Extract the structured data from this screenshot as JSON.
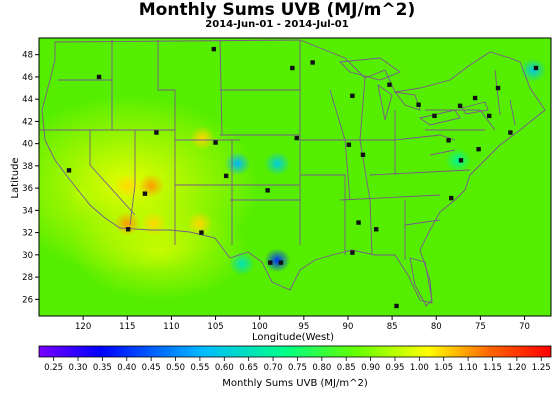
{
  "title": "Monthly Sums UVB (MJ/m^2)",
  "subtitle": "2014-Jun-01 - 2014-Jul-01",
  "map": {
    "ylabel": "Latitude",
    "xlabel": "Longitude(West)",
    "lat_ticks": [
      "48",
      "46",
      "44",
      "42",
      "40",
      "38",
      "36",
      "34",
      "32",
      "30",
      "28",
      "26"
    ],
    "lon_ticks": [
      "120",
      "115",
      "110",
      "105",
      "100",
      "95",
      "90",
      "85",
      "80",
      "75",
      "70"
    ],
    "background_color": "#55ee00"
  },
  "colorbar": {
    "label": "Monthly Sums UVB (MJ/m^2)",
    "ticks": [
      "0.25",
      "0.30",
      "0.35",
      "0.40",
      "0.45",
      "0.50",
      "0.55",
      "0.60",
      "0.65",
      "0.70",
      "0.75",
      "0.80",
      "0.85",
      "0.90",
      "0.95",
      "1.00",
      "1.05",
      "1.10",
      "1.15",
      "1.20",
      "1.25"
    ],
    "range": [
      0.22,
      1.27
    ],
    "colors": [
      "#7a00ff",
      "#0000ff",
      "#00bbff",
      "#00ff88",
      "#66ff00",
      "#ffff00",
      "#ff6600",
      "#ff0000"
    ]
  },
  "hotspots": [
    {
      "lon": 115,
      "lat": 32.8,
      "value": 1.1
    },
    {
      "lon": 112.3,
      "lat": 36.2,
      "value": 1.1
    },
    {
      "lon": 115,
      "lat": 36.2,
      "value": 1.05
    },
    {
      "lon": 112,
      "lat": 32.8,
      "value": 1.05
    },
    {
      "lon": 106.8,
      "lat": 32.8,
      "value": 1.05
    },
    {
      "lon": 106.5,
      "lat": 40.5,
      "value": 1.05
    },
    {
      "lon": 120,
      "lat": 35.5,
      "value": 0.95
    },
    {
      "lon": 102.5,
      "lat": 38.2,
      "value": 0.55
    },
    {
      "lon": 98,
      "lat": 38.2,
      "value": 0.6
    },
    {
      "lon": 98,
      "lat": 29.5,
      "value": 0.4
    },
    {
      "lon": 102,
      "lat": 29.2,
      "value": 0.65
    },
    {
      "lon": 77.5,
      "lat": 38.5,
      "value": 0.7
    },
    {
      "lon": 69,
      "lat": 46.6,
      "value": 0.6
    }
  ],
  "stations": [
    {
      "lon": 118.2,
      "lat": 46.0
    },
    {
      "lon": 105.2,
      "lat": 48.5
    },
    {
      "lon": 96.3,
      "lat": 46.8
    },
    {
      "lon": 94.0,
      "lat": 47.3
    },
    {
      "lon": 89.5,
      "lat": 44.3
    },
    {
      "lon": 85.3,
      "lat": 45.3
    },
    {
      "lon": 82.0,
      "lat": 43.5
    },
    {
      "lon": 77.3,
      "lat": 43.4
    },
    {
      "lon": 75.6,
      "lat": 44.1
    },
    {
      "lon": 74.0,
      "lat": 42.5
    },
    {
      "lon": 71.6,
      "lat": 41.0
    },
    {
      "lon": 68.7,
      "lat": 46.8
    },
    {
      "lon": 73.0,
      "lat": 45.0
    },
    {
      "lon": 80.2,
      "lat": 42.5
    },
    {
      "lon": 78.6,
      "lat": 40.3
    },
    {
      "lon": 89.9,
      "lat": 39.9
    },
    {
      "lon": 95.8,
      "lat": 40.5
    },
    {
      "lon": 111.7,
      "lat": 41.0
    },
    {
      "lon": 105.0,
      "lat": 40.1
    },
    {
      "lon": 103.8,
      "lat": 37.1
    },
    {
      "lon": 113.0,
      "lat": 35.5
    },
    {
      "lon": 121.6,
      "lat": 37.6
    },
    {
      "lon": 114.9,
      "lat": 32.3
    },
    {
      "lon": 106.6,
      "lat": 32.0
    },
    {
      "lon": 99.1,
      "lat": 35.8
    },
    {
      "lon": 88.3,
      "lat": 39.0
    },
    {
      "lon": 88.8,
      "lat": 32.9
    },
    {
      "lon": 86.8,
      "lat": 32.3
    },
    {
      "lon": 89.5,
      "lat": 30.2
    },
    {
      "lon": 97.6,
      "lat": 29.3
    },
    {
      "lon": 98.8,
      "lat": 29.3
    },
    {
      "lon": 84.5,
      "lat": 25.4
    },
    {
      "lon": 78.3,
      "lat": 35.1
    },
    {
      "lon": 77.2,
      "lat": 38.5
    },
    {
      "lon": 75.2,
      "lat": 39.5
    }
  ]
}
